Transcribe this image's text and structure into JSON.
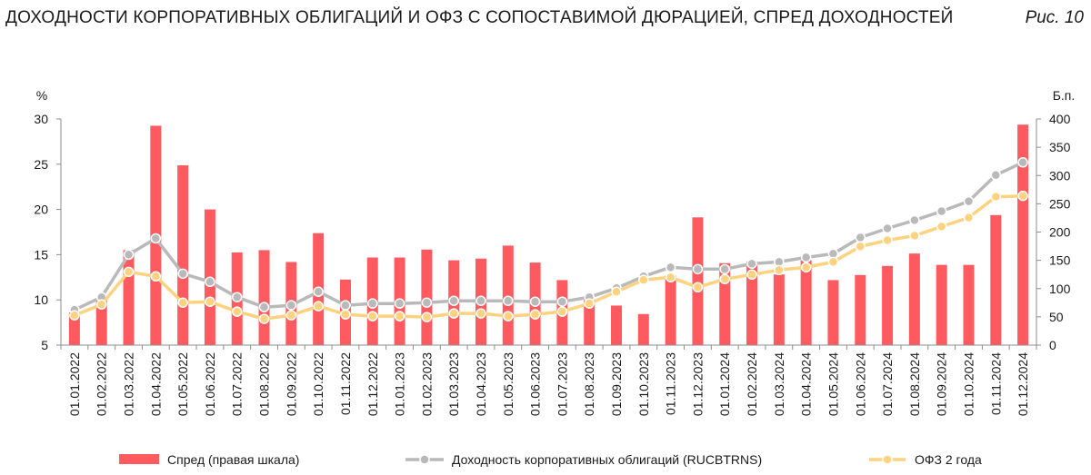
{
  "header": {
    "title": "ДОХОДНОСТИ КОРПОРАТИВНЫХ ОБЛИГАЦИЙ И ОФЗ С СОПОСТАВИМОЙ ДЮРАЦИЕЙ, СПРЕД ДОХОДНОСТЕЙ",
    "figure_ref": "Рис. 10"
  },
  "chart_data": {
    "type": "bar",
    "categories": [
      "01.01.2022",
      "01.02.2022",
      "01.03.2022",
      "01.04.2022",
      "01.05.2022",
      "01.06.2022",
      "01.07.2022",
      "01.08.2022",
      "01.09.2022",
      "01.10.2022",
      "01.11.2022",
      "01.12.2022",
      "01.01.2023",
      "01.02.2023",
      "01.03.2023",
      "01.04.2023",
      "01.05.2023",
      "01.06.2023",
      "01.07.2023",
      "01.08.2023",
      "01.09.2023",
      "01.10.2023",
      "01.11.2023",
      "01.12.2023",
      "01.01.2024",
      "01.02.2024",
      "01.03.2024",
      "01.04.2024",
      "01.05.2024",
      "01.06.2024",
      "01.07.2024",
      "01.08.2024",
      "01.09.2024",
      "01.10.2024",
      "01.11.2024",
      "01.12.2024"
    ],
    "y_left": {
      "label": "%",
      "min": 5,
      "max": 30,
      "ticks": [
        5,
        10,
        15,
        20,
        25,
        30
      ]
    },
    "y_right": {
      "label": "Б.п.",
      "min": 0,
      "max": 400,
      "ticks": [
        0,
        50,
        100,
        150,
        200,
        250,
        300,
        350,
        400
      ]
    },
    "grid": false,
    "legend_position": "bottom",
    "series": [
      {
        "name": "Спред (правая шкала)",
        "kind": "bar",
        "axis": "right",
        "color": "#ff5a5f",
        "values": [
          58,
          83,
          168,
          388,
          318,
          240,
          164,
          168,
          147,
          198,
          116,
          155,
          155,
          169,
          150,
          153,
          176,
          146,
          115,
          80,
          70,
          55,
          123,
          226,
          145,
          148,
          125,
          150,
          115,
          124,
          140,
          162,
          142,
          142,
          230,
          390
        ]
      },
      {
        "name": "Доходность корпоративных облигаций (RUCBTRNS)",
        "kind": "line",
        "axis": "left",
        "color": "#b9b9b9",
        "values": [
          8.9,
          10.3,
          15.0,
          16.8,
          12.9,
          12.0,
          10.3,
          9.2,
          9.4,
          10.9,
          9.4,
          9.6,
          9.6,
          9.7,
          9.9,
          9.9,
          9.9,
          9.8,
          9.8,
          10.3,
          11.3,
          12.6,
          13.6,
          13.4,
          13.4,
          14.0,
          14.2,
          14.7,
          15.1,
          16.9,
          17.9,
          18.8,
          19.8,
          20.9,
          23.8,
          25.2
        ]
      },
      {
        "name": "ОФЗ 2 года",
        "kind": "line",
        "axis": "left",
        "color": "#ffd27f",
        "values": [
          8.3,
          9.5,
          13.1,
          12.6,
          9.7,
          9.8,
          8.7,
          7.9,
          8.3,
          9.3,
          8.4,
          8.2,
          8.2,
          8.1,
          8.5,
          8.5,
          8.2,
          8.4,
          8.7,
          9.6,
          10.9,
          12.2,
          12.5,
          11.4,
          12.3,
          12.8,
          13.3,
          13.6,
          14.2,
          15.9,
          16.6,
          17.1,
          18.1,
          19.1,
          21.4,
          21.5
        ]
      }
    ]
  }
}
